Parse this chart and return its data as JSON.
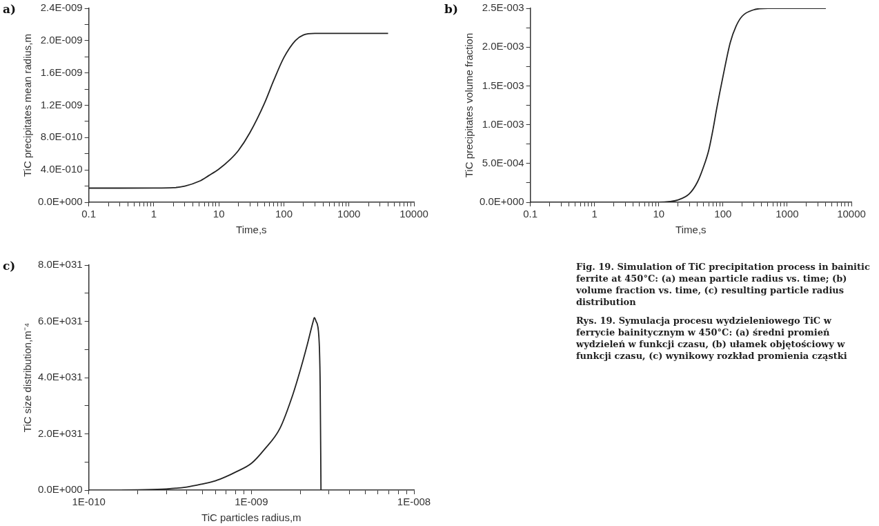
{
  "chart_data": [
    {
      "type": "line",
      "xlabel": "Time,s",
      "ylabel": "TiC precipitates mean radius,m",
      "annotations": [
        "a)"
      ],
      "log": "x",
      "grid": false,
      "color": "#222222",
      "x": [
        0.1,
        0.3,
        1,
        2,
        3,
        5,
        7,
        10,
        15,
        20,
        30,
        50,
        70,
        100,
        150,
        200,
        300,
        500,
        1000,
        4000
      ],
      "values": [
        1.75e-10,
        1.75e-10,
        1.76e-10,
        1.8e-10,
        2e-10,
        2.6e-10,
        3.3e-10,
        4.1e-10,
        5.3e-10,
        6.4e-10,
        8.6e-10,
        1.22e-09,
        1.51e-09,
        1.79e-09,
        2e-09,
        2.07e-09,
        2.09e-09,
        2.09e-09,
        2.09e-09,
        2.09e-09
      ],
      "xlim": [
        0.1,
        10000
      ],
      "xticks": [
        0.1,
        {
          "value": 0.2,
          "label": null
        },
        {
          "value": 0.3,
          "label": null
        },
        {
          "value": 0.4,
          "label": null
        },
        {
          "value": 0.5,
          "label": null
        },
        {
          "value": 0.6,
          "label": null
        },
        {
          "value": 0.7,
          "label": null
        },
        {
          "value": 0.8,
          "label": null
        },
        {
          "value": 0.9,
          "label": null
        },
        1,
        {
          "value": 2,
          "label": null
        },
        {
          "value": 3,
          "label": null
        },
        {
          "value": 4,
          "label": null
        },
        {
          "value": 5,
          "label": null
        },
        {
          "value": 6,
          "label": null
        },
        {
          "value": 7,
          "label": null
        },
        {
          "value": 8,
          "label": null
        },
        {
          "value": 9,
          "label": null
        },
        10,
        {
          "value": 20,
          "label": null
        },
        {
          "value": 30,
          "label": null
        },
        {
          "value": 40,
          "label": null
        },
        {
          "value": 50,
          "label": null
        },
        {
          "value": 60,
          "label": null
        },
        {
          "value": 70,
          "label": null
        },
        {
          "value": 80,
          "label": null
        },
        {
          "value": 90,
          "label": null
        },
        100,
        {
          "value": 200,
          "label": null
        },
        {
          "value": 300,
          "label": null
        },
        {
          "value": 400,
          "label": null
        },
        {
          "value": 500,
          "label": null
        },
        {
          "value": 600,
          "label": null
        },
        {
          "value": 700,
          "label": null
        },
        {
          "value": 800,
          "label": null
        },
        {
          "value": 900,
          "label": null
        },
        1000,
        {
          "value": 2000,
          "label": null
        },
        {
          "value": 3000,
          "label": null
        },
        {
          "value": 4000,
          "label": null
        },
        {
          "value": 5000,
          "label": null
        },
        {
          "value": 6000,
          "label": null
        },
        {
          "value": 7000,
          "label": null
        },
        {
          "value": 8000,
          "label": null
        },
        {
          "value": 9000,
          "label": null
        },
        10000
      ],
      "ylim": [
        0,
        2.4e-09
      ],
      "yticks": [
        {
          "value": 0,
          "label": "0.0E+000"
        },
        {
          "value": 2e-10,
          "label": null
        },
        {
          "value": 4e-10,
          "label": "4.0E-010"
        },
        {
          "value": 6e-10,
          "label": null
        },
        {
          "value": 8e-10,
          "label": "8.0E-010"
        },
        {
          "value": 1e-09,
          "label": null
        },
        {
          "value": 1.2e-09,
          "label": "1.2E-009"
        },
        {
          "value": 1.4e-09,
          "label": null
        },
        {
          "value": 1.6e-09,
          "label": "1.6E-009"
        },
        {
          "value": 1.8e-09,
          "label": null
        },
        {
          "value": 2e-09,
          "label": "2.0E-009"
        },
        {
          "value": 2.2e-09,
          "label": null
        },
        {
          "value": 2.4e-09,
          "label": "2.4E-009"
        }
      ]
    },
    {
      "type": "line",
      "xlabel": "Time,s",
      "ylabel": "TiC precipitates volume fraction",
      "annotations": [
        "b)"
      ],
      "log": "x",
      "grid": false,
      "color": "#222222",
      "x": [
        0.1,
        1,
        10,
        15,
        20,
        30,
        40,
        50,
        60,
        70,
        80,
        100,
        130,
        160,
        200,
        300,
        500,
        1000,
        4000
      ],
      "values": [
        0,
        0,
        0,
        1e-05,
        3e-05,
        0.00011,
        0.00026,
        0.00046,
        0.00067,
        0.00094,
        0.00121,
        0.00162,
        0.00206,
        0.00227,
        0.0024,
        0.00248,
        0.0025,
        0.0025,
        0.0025
      ],
      "xlim": [
        0.1,
        10000
      ],
      "xticks": [
        0.1,
        {
          "value": 0.2,
          "label": null
        },
        {
          "value": 0.3,
          "label": null
        },
        {
          "value": 0.4,
          "label": null
        },
        {
          "value": 0.5,
          "label": null
        },
        {
          "value": 0.6,
          "label": null
        },
        {
          "value": 0.7,
          "label": null
        },
        {
          "value": 0.8,
          "label": null
        },
        {
          "value": 0.9,
          "label": null
        },
        1,
        {
          "value": 2,
          "label": null
        },
        {
          "value": 3,
          "label": null
        },
        {
          "value": 4,
          "label": null
        },
        {
          "value": 5,
          "label": null
        },
        {
          "value": 6,
          "label": null
        },
        {
          "value": 7,
          "label": null
        },
        {
          "value": 8,
          "label": null
        },
        {
          "value": 9,
          "label": null
        },
        10,
        {
          "value": 20,
          "label": null
        },
        {
          "value": 30,
          "label": null
        },
        {
          "value": 40,
          "label": null
        },
        {
          "value": 50,
          "label": null
        },
        {
          "value": 60,
          "label": null
        },
        {
          "value": 70,
          "label": null
        },
        {
          "value": 80,
          "label": null
        },
        {
          "value": 90,
          "label": null
        },
        100,
        {
          "value": 200,
          "label": null
        },
        {
          "value": 300,
          "label": null
        },
        {
          "value": 400,
          "label": null
        },
        {
          "value": 500,
          "label": null
        },
        {
          "value": 600,
          "label": null
        },
        {
          "value": 700,
          "label": null
        },
        {
          "value": 800,
          "label": null
        },
        {
          "value": 900,
          "label": null
        },
        1000,
        {
          "value": 2000,
          "label": null
        },
        {
          "value": 3000,
          "label": null
        },
        {
          "value": 4000,
          "label": null
        },
        {
          "value": 5000,
          "label": null
        },
        {
          "value": 6000,
          "label": null
        },
        {
          "value": 7000,
          "label": null
        },
        {
          "value": 8000,
          "label": null
        },
        {
          "value": 9000,
          "label": null
        },
        10000
      ],
      "ylim": [
        0,
        0.0025
      ],
      "yticks": [
        {
          "value": 0,
          "label": "0.0E+000"
        },
        {
          "value": 0.00025,
          "label": null
        },
        {
          "value": 0.0005,
          "label": "5.0E-004"
        },
        {
          "value": 0.00075,
          "label": null
        },
        {
          "value": 0.001,
          "label": "1.0E-003"
        },
        {
          "value": 0.00125,
          "label": null
        },
        {
          "value": 0.0015,
          "label": "1.5E-003"
        },
        {
          "value": 0.00175,
          "label": null
        },
        {
          "value": 0.002,
          "label": "2.0E-003"
        },
        {
          "value": 0.00225,
          "label": null
        },
        {
          "value": 0.0025,
          "label": "2.5E-003"
        }
      ]
    },
    {
      "type": "line",
      "xlabel": "TiC particles radius,m",
      "ylabel": "TiC size distribution,m⁻⁴",
      "annotations": [
        "c)"
      ],
      "log": "x",
      "grid": false,
      "color": "#222222",
      "x": [
        1.6e-10,
        2e-10,
        3e-10,
        4e-10,
        5e-10,
        6e-10,
        7e-10,
        8e-10,
        1e-09,
        1.2e-09,
        1.5e-09,
        1.8e-09,
        2e-09,
        2.2e-09,
        2.4e-09,
        2.44e-09,
        2.5e-09,
        2.6e-09,
        2.65e-09,
        2.68e-09
      ],
      "values": [
        0,
        1e+29,
        4e+29,
        1.1e+30,
        2.2e+30,
        3.3e+30,
        4.8e+30,
        6.4e+30,
        9.5e+30,
        1.44e+31,
        2.2e+31,
        3.4e+31,
        4.27e+31,
        5.14e+31,
        6e+31,
        6.13e+31,
        6e+31,
        5.47e+31,
        3.7e+31,
        0
      ],
      "xlim": [
        1e-10,
        1e-08
      ],
      "xticks": [
        {
          "value": 1e-10,
          "label": "1E-010"
        },
        {
          "value": 2e-10,
          "label": null
        },
        {
          "value": 3e-10,
          "label": null
        },
        {
          "value": 4e-10,
          "label": null
        },
        {
          "value": 5e-10,
          "label": null
        },
        {
          "value": 6e-10,
          "label": null
        },
        {
          "value": 7e-10,
          "label": null
        },
        {
          "value": 8e-10,
          "label": null
        },
        {
          "value": 9e-10,
          "label": null
        },
        {
          "value": 1e-09,
          "label": "1E-009"
        },
        {
          "value": 2e-09,
          "label": null
        },
        {
          "value": 3e-09,
          "label": null
        },
        {
          "value": 4e-09,
          "label": null
        },
        {
          "value": 5e-09,
          "label": null
        },
        {
          "value": 6e-09,
          "label": null
        },
        {
          "value": 7e-09,
          "label": null
        },
        {
          "value": 8e-09,
          "label": null
        },
        {
          "value": 9e-09,
          "label": null
        },
        {
          "value": 1e-08,
          "label": "1E-008"
        }
      ],
      "ylim": [
        0,
        8e+31
      ],
      "yticks": [
        {
          "value": 0,
          "label": "0.0E+000"
        },
        {
          "value": 1e+31,
          "label": null
        },
        {
          "value": 2e+31,
          "label": "2.0E+031"
        },
        {
          "value": 3e+31,
          "label": null
        },
        {
          "value": 4e+31,
          "label": "4.0E+031"
        },
        {
          "value": 5e+31,
          "label": null
        },
        {
          "value": 6e+31,
          "label": "6.0E+031"
        },
        {
          "value": 7e+31,
          "label": null
        },
        {
          "value": 8e+31,
          "label": "8.0E+031"
        }
      ]
    },
    {
      "type": "other",
      "annotations": [
        "Fig. 19. Simulation of TiC precipitation process in bainitic ferrite at 450°C: (a) mean particle radius vs. time; (b) volume fraction vs. time, (c) resulting particle radius distribution",
        "Rys. 19. Symulacja procesu wydzieleniowego TiC w ferrycie bainitycznym w 450°C: (a) średni promień wydzieleń w funkcji czasu, (b) ułamek objętościowy w funkcji czasu, (c) wynikowy rozkład promienia cząstki"
      ]
    }
  ]
}
